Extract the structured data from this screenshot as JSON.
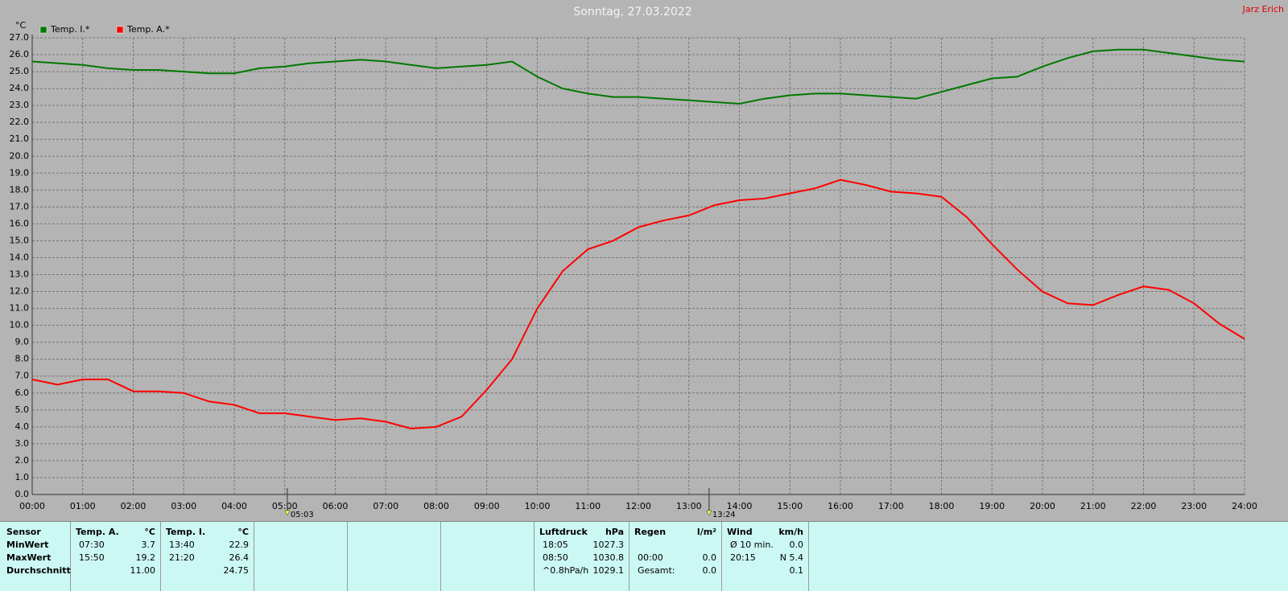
{
  "chart_data": {
    "type": "line",
    "title": "Sonntag, 27.03.2022",
    "author": "Jarz Erich",
    "y_unit": "°C",
    "x": [
      0,
      0.5,
      1,
      1.5,
      2,
      2.5,
      3,
      3.5,
      4,
      4.5,
      5,
      5.5,
      6,
      6.5,
      7,
      7.5,
      8,
      8.5,
      9,
      9.5,
      10,
      10.5,
      11,
      11.5,
      12,
      12.5,
      13,
      13.5,
      14,
      14.5,
      15,
      15.5,
      16,
      16.5,
      17,
      17.5,
      18,
      18.5,
      19,
      19.5,
      20,
      20.5,
      21,
      21.5,
      22,
      22.5,
      23,
      23.5,
      24
    ],
    "series": [
      {
        "name": "Temp. I.*",
        "color": "#007800",
        "values": [
          25.6,
          25.5,
          25.4,
          25.2,
          25.1,
          25.1,
          25.0,
          24.9,
          24.9,
          25.2,
          25.3,
          25.5,
          25.6,
          25.7,
          25.6,
          25.4,
          25.2,
          25.3,
          25.4,
          25.6,
          24.7,
          24.0,
          23.7,
          23.5,
          23.5,
          23.4,
          23.3,
          23.2,
          23.1,
          23.4,
          23.6,
          23.7,
          23.7,
          23.6,
          23.5,
          23.4,
          23.8,
          24.2,
          24.6,
          24.7,
          25.3,
          25.8,
          26.2,
          26.3,
          26.3,
          26.1,
          25.9,
          25.7,
          25.6
        ]
      },
      {
        "name": "Temp. A.*",
        "color": "#ff0000",
        "values": [
          6.8,
          6.5,
          6.8,
          6.8,
          6.1,
          6.1,
          6.0,
          5.5,
          5.3,
          4.8,
          4.8,
          4.6,
          4.4,
          4.5,
          4.3,
          3.9,
          4.0,
          4.6,
          6.2,
          8.0,
          11.0,
          13.2,
          14.5,
          15.0,
          15.8,
          16.2,
          16.5,
          17.1,
          17.4,
          17.5,
          17.8,
          18.1,
          18.6,
          18.3,
          17.9,
          17.8,
          17.6,
          16.4,
          14.8,
          13.3,
          12.0,
          11.3,
          11.2,
          11.8,
          12.3,
          12.1,
          11.3,
          10.1,
          9.2
        ]
      }
    ],
    "xlim": [
      0,
      24
    ],
    "xticks": [
      {
        "value": 0,
        "label": "00:00"
      },
      {
        "value": 1,
        "label": "01:00"
      },
      {
        "value": 2,
        "label": "02:00"
      },
      {
        "value": 3,
        "label": "03:00"
      },
      {
        "value": 4,
        "label": "04:00"
      },
      {
        "value": 5,
        "label": "05:00"
      },
      {
        "value": 6,
        "label": "06:00"
      },
      {
        "value": 7,
        "label": "07:00"
      },
      {
        "value": 8,
        "label": "08:00"
      },
      {
        "value": 9,
        "label": "09:00"
      },
      {
        "value": 10,
        "label": "10:00"
      },
      {
        "value": 11,
        "label": "11:00"
      },
      {
        "value": 12,
        "label": "12:00"
      },
      {
        "value": 13,
        "label": "13:00"
      },
      {
        "value": 14,
        "label": "14:00"
      },
      {
        "value": 15,
        "label": "15:00"
      },
      {
        "value": 16,
        "label": "16:00"
      },
      {
        "value": 17,
        "label": "17:00"
      },
      {
        "value": 18,
        "label": "18:00"
      },
      {
        "value": 19,
        "label": "19:00"
      },
      {
        "value": 20,
        "label": "20:00"
      },
      {
        "value": 21,
        "label": "21:00"
      },
      {
        "value": 22,
        "label": "22:00"
      },
      {
        "value": 23,
        "label": "23:00"
      },
      {
        "value": 24,
        "label": "24:00"
      }
    ],
    "ylim": [
      0,
      27
    ],
    "yticks": [
      {
        "value": 0,
        "label": "0.0"
      },
      {
        "value": 1,
        "label": "1.0"
      },
      {
        "value": 2,
        "label": "2.0"
      },
      {
        "value": 3,
        "label": "3.0"
      },
      {
        "value": 4,
        "label": "4.0"
      },
      {
        "value": 5,
        "label": "5.0"
      },
      {
        "value": 6,
        "label": "6.0"
      },
      {
        "value": 7,
        "label": "7.0"
      },
      {
        "value": 8,
        "label": "8.0"
      },
      {
        "value": 9,
        "label": "9.0"
      },
      {
        "value": 10,
        "label": "10.0"
      },
      {
        "value": 11,
        "label": "11.0"
      },
      {
        "value": 12,
        "label": "12.0"
      },
      {
        "value": 13,
        "label": "13.0"
      },
      {
        "value": 14,
        "label": "14.0"
      },
      {
        "value": 15,
        "label": "15.0"
      },
      {
        "value": 16,
        "label": "16.0"
      },
      {
        "value": 17,
        "label": "17.0"
      },
      {
        "value": 18,
        "label": "18.0"
      },
      {
        "value": 19,
        "label": "19.0"
      },
      {
        "value": 20,
        "label": "20.0"
      },
      {
        "value": 21,
        "label": "21.0"
      },
      {
        "value": 22,
        "label": "22.0"
      },
      {
        "value": 23,
        "label": "23.0"
      },
      {
        "value": 24,
        "label": "24.0"
      },
      {
        "value": 25,
        "label": "25.0"
      },
      {
        "value": 26,
        "label": "26.0"
      },
      {
        "value": 27,
        "label": "27.0"
      }
    ],
    "grid": true,
    "annotations": [
      {
        "x": 5.05,
        "label": "05:03"
      },
      {
        "x": 13.4,
        "label": "13:24"
      }
    ]
  },
  "stats": {
    "header": "Sensor",
    "row_labels": [
      "MinWert",
      "MaxWert",
      "Durchschnitt"
    ],
    "groups": [
      {
        "name": "Temp. A.",
        "unit": "°C",
        "rows": [
          {
            "time": "07:30",
            "value": "3.7"
          },
          {
            "time": "15:50",
            "value": "19.2"
          },
          {
            "value": "11.00"
          }
        ]
      },
      {
        "name": "Temp. I.",
        "unit": "°C",
        "rows": [
          {
            "time": "13:40",
            "value": "22.9"
          },
          {
            "time": "21:20",
            "value": "26.4"
          },
          {
            "value": "24.75"
          }
        ]
      },
      {
        "name": "Luftdruck",
        "unit": "hPa",
        "rows": [
          {
            "time": "18:05",
            "value": "1027.3"
          },
          {
            "time": "08:50",
            "value": "1030.8"
          },
          {
            "time": "^0.8hPa/h",
            "value": "1029.1"
          }
        ]
      },
      {
        "name": "Regen",
        "unit": "l/m²",
        "rows": [
          null,
          {
            "time": "00:00",
            "value": "0.0"
          },
          {
            "time": "Gesamt:",
            "value": "0.0"
          }
        ]
      },
      {
        "name": "Wind",
        "unit": "km/h",
        "rows": [
          {
            "time": "Ø 10 min.",
            "value": "0.0"
          },
          {
            "time": "20:15",
            "value": "N 5.4"
          },
          {
            "value": "0.1"
          }
        ]
      }
    ]
  }
}
